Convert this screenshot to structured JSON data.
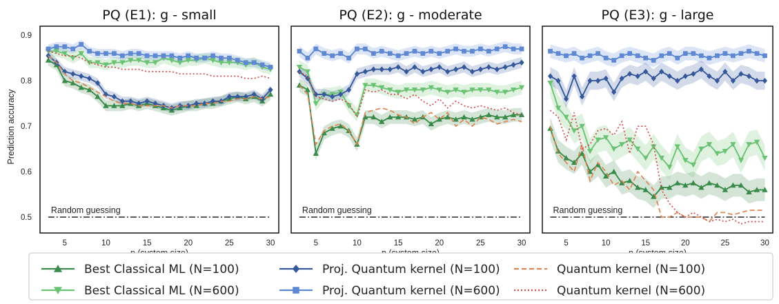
{
  "ylabel": "Prediction accuracy",
  "legend": [
    {
      "label": "Best Classical ML (N=100)",
      "color": "#3a8a4a",
      "marker": "triangle-up",
      "dash": "solid"
    },
    {
      "label": "Proj. Quantum kernel (N=100)",
      "color": "#35589a",
      "marker": "diamond",
      "dash": "solid"
    },
    {
      "label": "Quantum kernel (N=100)",
      "color": "#dd8452",
      "marker": "none",
      "dash": "dashed"
    },
    {
      "label": "Best Classical ML (N=600)",
      "color": "#6cc274",
      "marker": "triangle-down",
      "dash": "solid"
    },
    {
      "label": "Proj. Quantum kernel (N=600)",
      "color": "#5e88d1",
      "marker": "square",
      "dash": "solid"
    },
    {
      "label": "Quantum kernel (N=600)",
      "color": "#d44a4a",
      "marker": "none",
      "dash": "dotted"
    }
  ],
  "chart_data": [
    {
      "type": "line",
      "title": "PQ (E1): g - small",
      "xlabel": "n (system size)",
      "ylabel": "Prediction accuracy",
      "xlim": [
        2,
        31
      ],
      "ylim": [
        0.465,
        0.92
      ],
      "xticks": [
        5,
        10,
        15,
        20,
        25,
        30
      ],
      "yticks": [
        0.5,
        0.6,
        0.7,
        0.8,
        0.9
      ],
      "annotation": {
        "text": "Random guessing",
        "y": 0.5
      },
      "x": [
        3,
        4,
        5,
        6,
        7,
        8,
        9,
        10,
        11,
        12,
        13,
        14,
        15,
        16,
        17,
        18,
        19,
        20,
        21,
        22,
        23,
        24,
        25,
        26,
        27,
        28,
        29,
        30
      ],
      "series": [
        {
          "name": "Best Classical ML (N=100)",
          "values": [
            0.845,
            0.835,
            0.8,
            0.795,
            0.785,
            0.78,
            0.765,
            0.745,
            0.745,
            0.745,
            0.75,
            0.745,
            0.75,
            0.745,
            0.74,
            0.735,
            0.74,
            0.745,
            0.745,
            0.75,
            0.75,
            0.755,
            0.76,
            0.765,
            0.76,
            0.765,
            0.755,
            0.77
          ],
          "band": 0.012
        },
        {
          "name": "Best Classical ML (N=600)",
          "values": [
            0.865,
            0.865,
            0.86,
            0.85,
            0.86,
            0.84,
            0.84,
            0.835,
            0.84,
            0.84,
            0.845,
            0.845,
            0.84,
            0.84,
            0.85,
            0.845,
            0.84,
            0.845,
            0.845,
            0.85,
            0.845,
            0.84,
            0.84,
            0.84,
            0.835,
            0.84,
            0.83,
            0.825
          ],
          "band": 0.012
        },
        {
          "name": "Proj. Quantum kernel (N=100)",
          "values": [
            0.855,
            0.84,
            0.82,
            0.815,
            0.81,
            0.805,
            0.795,
            0.77,
            0.765,
            0.755,
            0.755,
            0.75,
            0.755,
            0.75,
            0.745,
            0.74,
            0.745,
            0.745,
            0.75,
            0.75,
            0.755,
            0.755,
            0.765,
            0.765,
            0.765,
            0.77,
            0.76,
            0.78
          ],
          "band": 0.01
        },
        {
          "name": "Proj. Quantum kernel (N=600)",
          "values": [
            0.87,
            0.875,
            0.875,
            0.87,
            0.88,
            0.865,
            0.86,
            0.86,
            0.86,
            0.855,
            0.86,
            0.86,
            0.855,
            0.855,
            0.855,
            0.855,
            0.85,
            0.855,
            0.85,
            0.85,
            0.855,
            0.85,
            0.85,
            0.845,
            0.84,
            0.84,
            0.835,
            0.83
          ],
          "band": 0.01
        },
        {
          "name": "Quantum kernel (N=100)",
          "values": [
            0.855,
            0.84,
            0.815,
            0.8,
            0.795,
            0.785,
            0.775,
            0.765,
            0.755,
            0.75,
            0.75,
            0.745,
            0.745,
            0.745,
            0.745,
            0.74,
            0.745,
            0.745,
            0.745,
            0.75,
            0.75,
            0.755,
            0.755,
            0.76,
            0.76,
            0.765,
            0.76,
            0.765
          ]
        },
        {
          "name": "Quantum kernel (N=600)",
          "values": [
            0.865,
            0.86,
            0.855,
            0.855,
            0.85,
            0.84,
            0.835,
            0.83,
            0.83,
            0.825,
            0.825,
            0.825,
            0.82,
            0.82,
            0.82,
            0.82,
            0.815,
            0.815,
            0.815,
            0.815,
            0.81,
            0.81,
            0.81,
            0.81,
            0.805,
            0.805,
            0.81,
            0.805
          ]
        }
      ]
    },
    {
      "type": "line",
      "title": "PQ (E2): g - moderate",
      "xlabel": "n (system size)",
      "xlim": [
        2,
        31
      ],
      "ylim": [
        0.465,
        0.92
      ],
      "xticks": [
        5,
        10,
        15,
        20,
        25,
        30
      ],
      "yticks": [
        0.5,
        0.6,
        0.7,
        0.8,
        0.9
      ],
      "annotation": {
        "text": "Random guessing",
        "y": 0.5
      },
      "x": [
        3,
        4,
        5,
        6,
        7,
        8,
        9,
        10,
        11,
        12,
        13,
        14,
        15,
        16,
        17,
        18,
        19,
        20,
        21,
        22,
        23,
        24,
        25,
        26,
        27,
        28,
        29,
        30
      ],
      "series": [
        {
          "name": "Best Classical ML (N=100)",
          "values": [
            0.79,
            0.78,
            0.64,
            0.685,
            0.695,
            0.7,
            0.69,
            0.66,
            0.72,
            0.72,
            0.71,
            0.72,
            0.72,
            0.72,
            0.715,
            0.72,
            0.705,
            0.715,
            0.72,
            0.715,
            0.72,
            0.715,
            0.72,
            0.725,
            0.72,
            0.72,
            0.725,
            0.725
          ],
          "band": 0.015
        },
        {
          "name": "Best Classical ML (N=600)",
          "values": [
            0.83,
            0.82,
            0.75,
            0.77,
            0.77,
            0.775,
            0.745,
            0.725,
            0.79,
            0.79,
            0.785,
            0.78,
            0.775,
            0.78,
            0.78,
            0.78,
            0.785,
            0.78,
            0.775,
            0.78,
            0.775,
            0.78,
            0.78,
            0.78,
            0.775,
            0.775,
            0.78,
            0.785
          ],
          "band": 0.015
        },
        {
          "name": "Proj. Quantum kernel (N=100)",
          "values": [
            0.82,
            0.805,
            0.77,
            0.77,
            0.765,
            0.77,
            0.78,
            0.815,
            0.82,
            0.825,
            0.825,
            0.825,
            0.83,
            0.82,
            0.83,
            0.82,
            0.825,
            0.83,
            0.82,
            0.825,
            0.83,
            0.82,
            0.825,
            0.83,
            0.825,
            0.83,
            0.835,
            0.84
          ],
          "band": 0.012
        },
        {
          "name": "Proj. Quantum kernel (N=600)",
          "values": [
            0.865,
            0.85,
            0.87,
            0.86,
            0.855,
            0.86,
            0.85,
            0.87,
            0.87,
            0.86,
            0.865,
            0.86,
            0.855,
            0.86,
            0.865,
            0.86,
            0.865,
            0.86,
            0.865,
            0.87,
            0.865,
            0.865,
            0.87,
            0.865,
            0.87,
            0.875,
            0.87,
            0.87
          ],
          "band": 0.012
        },
        {
          "name": "Quantum kernel (N=100)",
          "values": [
            0.79,
            0.77,
            0.66,
            0.69,
            0.7,
            0.705,
            0.69,
            0.66,
            0.73,
            0.735,
            0.74,
            0.735,
            0.725,
            0.72,
            0.705,
            0.72,
            0.73,
            0.715,
            0.73,
            0.7,
            0.715,
            0.7,
            0.72,
            0.715,
            0.705,
            0.71,
            0.715,
            0.71
          ]
        },
        {
          "name": "Quantum kernel (N=600)",
          "values": [
            0.82,
            0.81,
            0.765,
            0.76,
            0.755,
            0.76,
            0.75,
            0.72,
            0.78,
            0.775,
            0.78,
            0.77,
            0.77,
            0.76,
            0.77,
            0.755,
            0.745,
            0.76,
            0.74,
            0.755,
            0.745,
            0.74,
            0.745,
            0.74,
            0.735,
            0.74,
            0.73,
            0.725
          ]
        }
      ]
    },
    {
      "type": "line",
      "title": "PQ (E3): g - large",
      "xlabel": "n (system size)",
      "xlim": [
        2,
        31
      ],
      "ylim": [
        0.465,
        0.92
      ],
      "xticks": [
        5,
        10,
        15,
        20,
        25,
        30
      ],
      "yticks": [
        0.5,
        0.6,
        0.7,
        0.8,
        0.9
      ],
      "annotation": {
        "text": "Random guessing",
        "y": 0.5
      },
      "x": [
        3,
        4,
        5,
        6,
        7,
        8,
        9,
        10,
        11,
        12,
        13,
        14,
        15,
        16,
        17,
        18,
        19,
        20,
        21,
        22,
        23,
        24,
        25,
        26,
        27,
        28,
        29,
        30
      ],
      "series": [
        {
          "name": "Best Classical ML (N=100)",
          "values": [
            0.695,
            0.645,
            0.63,
            0.62,
            0.64,
            0.6,
            0.615,
            0.59,
            0.6,
            0.575,
            0.58,
            0.565,
            0.56,
            0.545,
            0.565,
            0.565,
            0.575,
            0.57,
            0.575,
            0.565,
            0.575,
            0.57,
            0.56,
            0.57,
            0.57,
            0.555,
            0.56,
            0.56
          ],
          "band": 0.025
        },
        {
          "name": "Best Classical ML (N=600)",
          "values": [
            0.795,
            0.74,
            0.72,
            0.69,
            0.7,
            0.645,
            0.67,
            0.675,
            0.65,
            0.66,
            0.67,
            0.65,
            0.63,
            0.655,
            0.63,
            0.61,
            0.655,
            0.625,
            0.615,
            0.65,
            0.66,
            0.64,
            0.645,
            0.66,
            0.625,
            0.66,
            0.665,
            0.63
          ],
          "band": 0.028
        },
        {
          "name": "Proj. Quantum kernel (N=100)",
          "values": [
            0.81,
            0.8,
            0.76,
            0.81,
            0.765,
            0.8,
            0.8,
            0.805,
            0.775,
            0.805,
            0.815,
            0.81,
            0.82,
            0.805,
            0.82,
            0.81,
            0.8,
            0.81,
            0.815,
            0.825,
            0.81,
            0.8,
            0.82,
            0.8,
            0.815,
            0.81,
            0.8,
            0.8
          ],
          "band": 0.02
        },
        {
          "name": "Proj. Quantum kernel (N=600)",
          "values": [
            0.865,
            0.86,
            0.855,
            0.86,
            0.85,
            0.855,
            0.86,
            0.85,
            0.845,
            0.855,
            0.86,
            0.855,
            0.85,
            0.845,
            0.855,
            0.86,
            0.85,
            0.86,
            0.86,
            0.855,
            0.85,
            0.855,
            0.86,
            0.855,
            0.86,
            0.865,
            0.86,
            0.855
          ],
          "band": 0.015
        },
        {
          "name": "Quantum kernel (N=100)",
          "values": [
            0.7,
            0.64,
            0.62,
            0.6,
            0.66,
            0.58,
            0.62,
            0.6,
            0.57,
            0.58,
            0.56,
            0.6,
            0.58,
            0.56,
            0.5,
            0.5,
            0.51,
            0.5,
            0.5,
            0.5,
            0.49,
            0.51,
            0.51,
            0.505,
            0.51,
            0.515,
            0.515,
            0.515
          ]
        },
        {
          "name": "Quantum kernel (N=600)",
          "values": [
            0.735,
            0.72,
            0.67,
            0.73,
            0.65,
            0.66,
            0.69,
            0.695,
            0.68,
            0.71,
            0.64,
            0.7,
            0.7,
            0.66,
            0.56,
            0.53,
            0.51,
            0.5,
            0.51,
            0.5,
            0.49,
            0.495,
            0.49,
            0.495,
            0.485,
            0.49,
            0.49,
            0.49
          ]
        }
      ]
    }
  ]
}
